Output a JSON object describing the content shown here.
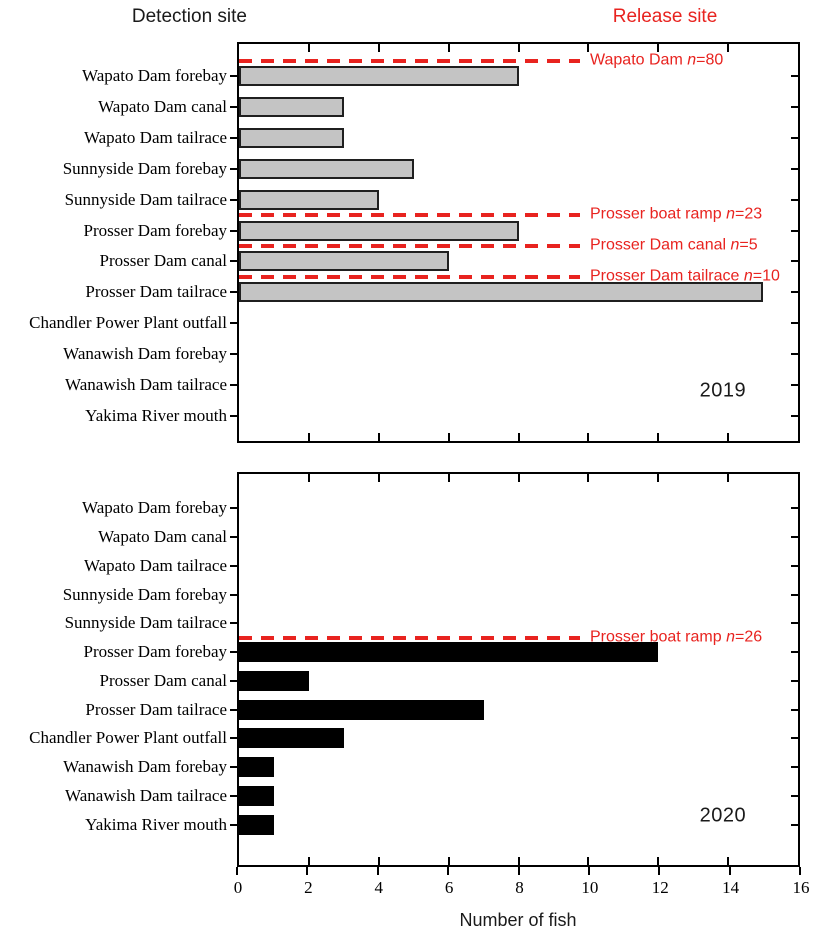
{
  "header": {
    "detection_label": "Detection site",
    "release_label": "Release site"
  },
  "colors": {
    "annotation_red": "#e8231f",
    "bar_2019_fill": "#c4c4c4",
    "bar_2019_stroke": "#1f1f1f",
    "bar_2020_fill": "#000000",
    "axis_black": "#000000"
  },
  "chart_data": {
    "type": "bar",
    "orientation": "horizontal",
    "xlabel": "Number of fish",
    "xlim": [
      0,
      16
    ],
    "xticks": [
      0,
      2,
      4,
      6,
      8,
      10,
      12,
      14,
      16
    ],
    "grid": false,
    "categories": [
      "Wapato Dam forebay",
      "Wapato Dam canal",
      "Wapato Dam tailrace",
      "Sunnyside Dam forebay",
      "Sunnyside Dam tailrace",
      "Prosser Dam forebay",
      "Prosser Dam canal",
      "Prosser Dam tailrace",
      "Chandler Power Plant outfall",
      "Wanawish Dam forebay",
      "Wanawish Dam tailrace",
      "Yakima River mouth"
    ],
    "panels": [
      {
        "year": "2019",
        "bar_fill": "#c4c4c4",
        "bar_stroke": "#1f1f1f",
        "values": [
          8,
          3,
          3,
          5,
          4,
          8,
          6,
          15,
          0,
          0,
          0,
          0
        ],
        "release_annotations": [
          {
            "above_index": 0,
            "site": "Wapato Dam",
            "n": "80"
          },
          {
            "above_index": 5,
            "site": "Prosser boat ramp",
            "n": "23"
          },
          {
            "above_index": 6,
            "site": "Prosser Dam canal",
            "n": "5"
          },
          {
            "above_index": 7,
            "site": "Prosser Dam tailrace",
            "n": "10"
          }
        ]
      },
      {
        "year": "2020",
        "bar_fill": "#000000",
        "bar_stroke": "#000000",
        "values": [
          0,
          0,
          0,
          0,
          0,
          12,
          2,
          7,
          3,
          1,
          1,
          1
        ],
        "release_annotations": [
          {
            "above_index": 5,
            "site": "Prosser boat ramp",
            "n": "26"
          }
        ]
      }
    ]
  }
}
